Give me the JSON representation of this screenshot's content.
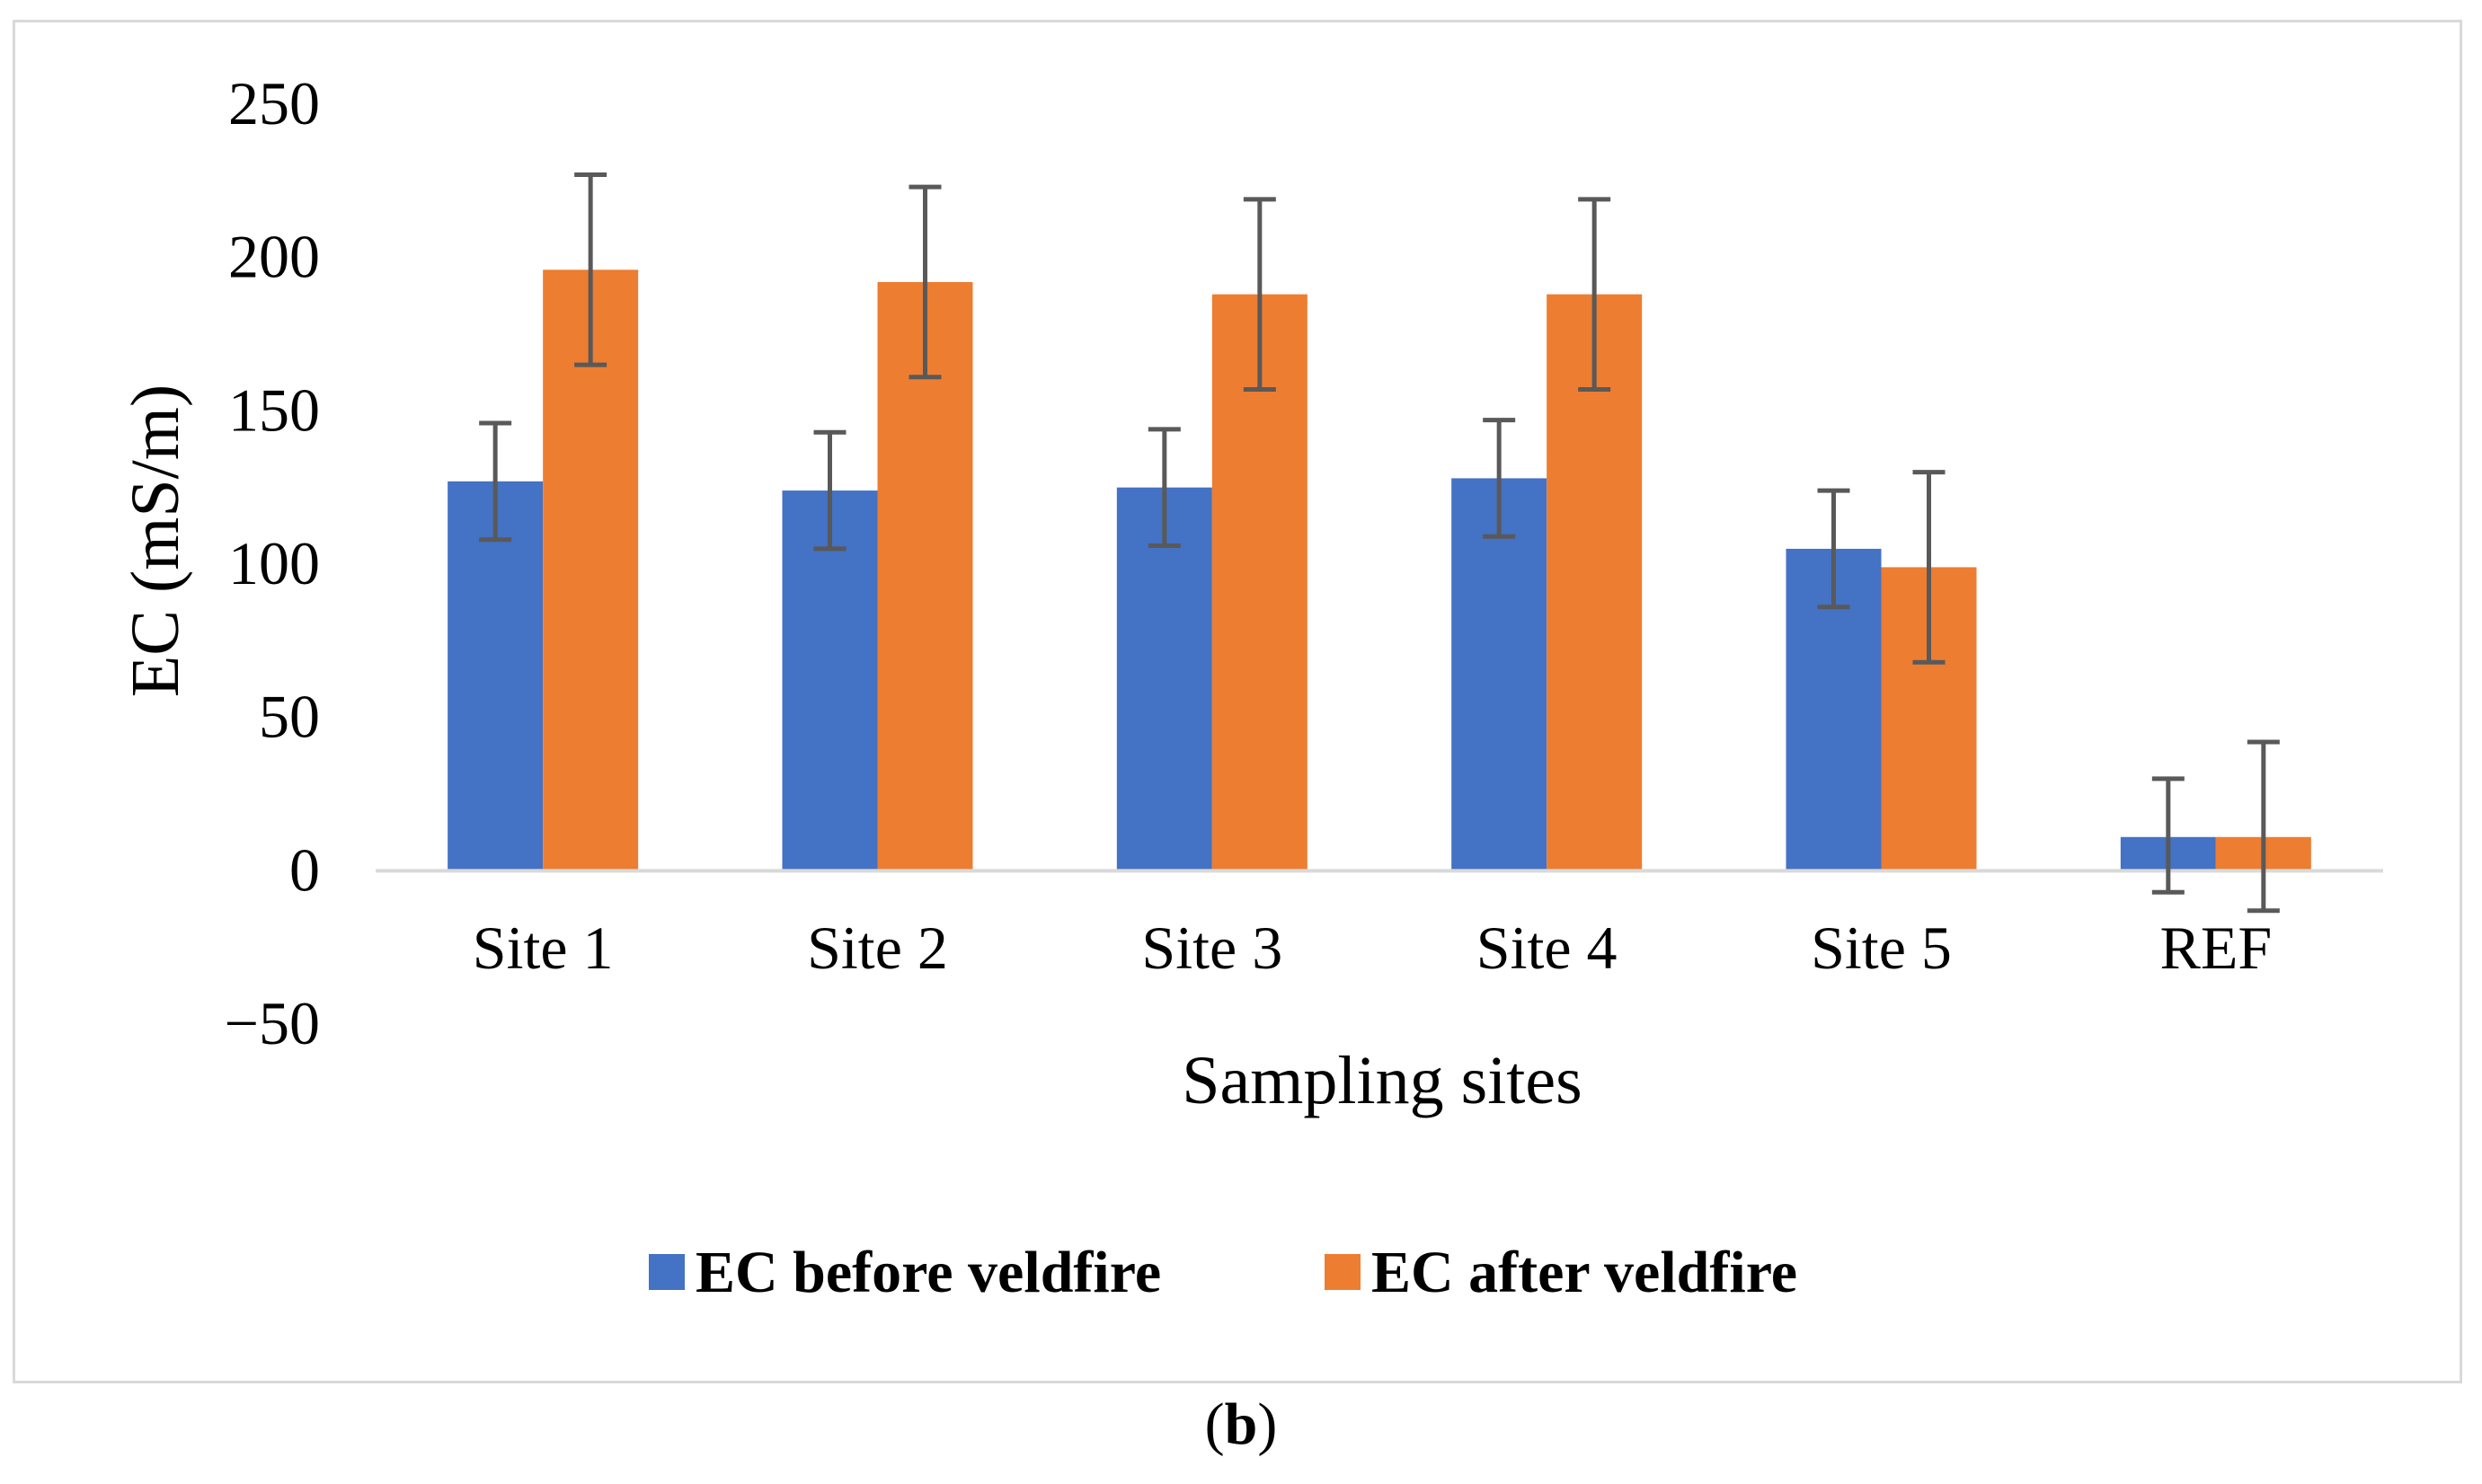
{
  "chart_data": {
    "type": "bar",
    "title": "",
    "xlabel": "Sampling sites",
    "ylabel": "EC (mS/m)",
    "ylim": [
      -50,
      250
    ],
    "yticks": [
      250,
      200,
      150,
      100,
      50,
      0,
      -50
    ],
    "ytick_labels": [
      "250",
      "200",
      "150",
      "100",
      "50",
      "0",
      "−50"
    ],
    "grid": false,
    "legend_position": "bottom",
    "categories": [
      "Site 1",
      "Site 2",
      "Site 3",
      "Site 4",
      "Site 5",
      "REF"
    ],
    "series": [
      {
        "name": "EC before veldfire",
        "color": "#4472c4",
        "values": [
          127,
          124,
          125,
          128,
          105,
          11
        ],
        "error_low": [
          108,
          105,
          106,
          109,
          86,
          -7
        ],
        "error_high": [
          146,
          143,
          144,
          147,
          124,
          30
        ]
      },
      {
        "name": "EC after veldfire",
        "color": "#ed7d31",
        "values": [
          196,
          192,
          188,
          188,
          99,
          11
        ],
        "error_low": [
          165,
          161,
          157,
          157,
          68,
          -13
        ],
        "error_high": [
          227,
          223,
          219,
          219,
          130,
          42
        ]
      }
    ],
    "error_bar_color": "#595959",
    "axis_color": "#d9d9d9"
  },
  "panel_label": {
    "open": "(",
    "letter": "b",
    "close": ")"
  }
}
